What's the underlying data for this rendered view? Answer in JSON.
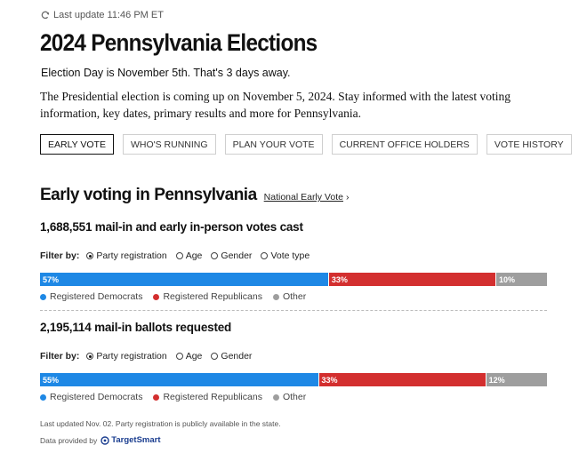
{
  "header": {
    "last_update": "Last update 11:46 PM ET",
    "title": "2024 Pennsylvania Elections",
    "election_day": "Election Day is November 5th. That's 3 days away.",
    "intro": "The Presidential election is coming up on November 5, 2024. Stay informed with the latest voting information, key dates, primary results and more for Pennsylvania."
  },
  "tabs": [
    "EARLY VOTE",
    "WHO'S RUNNING",
    "PLAN YOUR VOTE",
    "CURRENT OFFICE HOLDERS",
    "VOTE HISTORY"
  ],
  "early_voting": {
    "title": "Early voting in Pennsylvania",
    "national_link": "National Early Vote",
    "filter_label": "Filter by:",
    "block1": {
      "heading": "1,688,551 mail-in and early in-person votes cast",
      "filters": [
        "Party registration",
        "Age",
        "Gender",
        "Vote type"
      ],
      "selected_filter": "Party registration",
      "segments": [
        {
          "label": "57%",
          "value": 57,
          "color": "#1e88e5"
        },
        {
          "label": "33%",
          "value": 33,
          "color": "#d32f2f"
        },
        {
          "label": "10%",
          "value": 10,
          "color": "#9e9e9e"
        }
      ]
    },
    "block2": {
      "heading": "2,195,114 mail-in ballots requested",
      "filters": [
        "Party registration",
        "Age",
        "Gender"
      ],
      "selected_filter": "Party registration",
      "segments": [
        {
          "label": "55%",
          "value": 55,
          "color": "#1e88e5"
        },
        {
          "label": "33%",
          "value": 33,
          "color": "#d32f2f"
        },
        {
          "label": "12%",
          "value": 12,
          "color": "#9e9e9e"
        }
      ]
    },
    "legend": [
      {
        "label": "Registered Democrats",
        "color": "#1e88e5"
      },
      {
        "label": "Registered Republicans",
        "color": "#d32f2f"
      },
      {
        "label": "Other",
        "color": "#9e9e9e"
      }
    ]
  },
  "footer": {
    "note": "Last updated Nov. 02. Party registration is publicly available in the state.",
    "provided_by": "Data provided by",
    "provider_name": "TargetSmart"
  },
  "icons": {
    "refresh": "refresh-icon",
    "chevron": "chevron-right-icon",
    "provider_logo": "targetsmart-logo"
  }
}
